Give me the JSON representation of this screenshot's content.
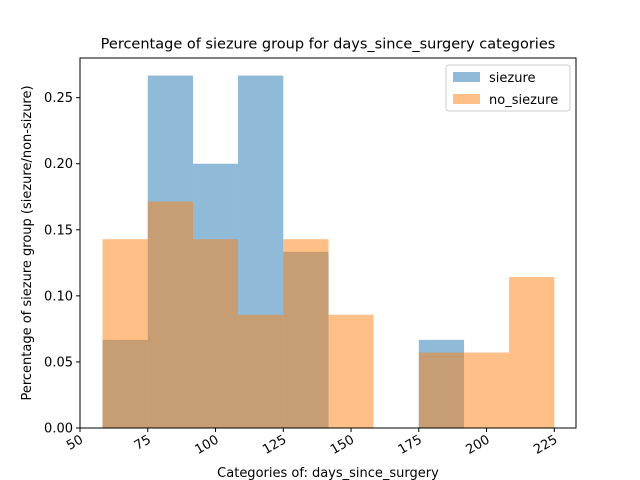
{
  "chart_data": {
    "type": "histogram",
    "title": "Percentage of siezure group for days_since_surgery categories",
    "xlabel": "Categories of: days_since_surgery",
    "ylabel": "Percentage of siezure group (siezure/non-sizure)",
    "xlim": [
      50,
      233
    ],
    "ylim": [
      0,
      0.28
    ],
    "xticks": [
      50,
      75,
      100,
      125,
      150,
      175,
      200,
      225
    ],
    "yticks": [
      "0.00",
      "0.05",
      "0.10",
      "0.15",
      "0.20",
      "0.25"
    ],
    "xtick_rotation_deg": 30,
    "grid": false,
    "legend_position": "top-right",
    "series": [
      {
        "name": "siezure",
        "color": "#1f77b4",
        "opacity": 0.5,
        "bins": [
          {
            "x0": 58.3,
            "x1": 75.0,
            "value": 0.0667
          },
          {
            "x0": 75.0,
            "x1": 91.7,
            "value": 0.2667
          },
          {
            "x0": 91.7,
            "x1": 108.3,
            "value": 0.2
          },
          {
            "x0": 108.3,
            "x1": 125.0,
            "value": 0.2667
          },
          {
            "x0": 125.0,
            "x1": 141.7,
            "value": 0.1333
          },
          {
            "x0": 175.0,
            "x1": 191.7,
            "value": 0.0667
          }
        ]
      },
      {
        "name": "no_siezure",
        "color": "#ff7f0e",
        "opacity": 0.5,
        "bins": [
          {
            "x0": 58.3,
            "x1": 75.0,
            "value": 0.1429
          },
          {
            "x0": 75.0,
            "x1": 91.7,
            "value": 0.1714
          },
          {
            "x0": 91.7,
            "x1": 108.3,
            "value": 0.1429
          },
          {
            "x0": 108.3,
            "x1": 125.0,
            "value": 0.0857
          },
          {
            "x0": 125.0,
            "x1": 141.7,
            "value": 0.1429
          },
          {
            "x0": 141.7,
            "x1": 158.3,
            "value": 0.0857
          },
          {
            "x0": 175.0,
            "x1": 191.7,
            "value": 0.0571
          },
          {
            "x0": 191.7,
            "x1": 208.3,
            "value": 0.0571
          },
          {
            "x0": 208.3,
            "x1": 225.0,
            "value": 0.1143
          }
        ]
      }
    ]
  }
}
